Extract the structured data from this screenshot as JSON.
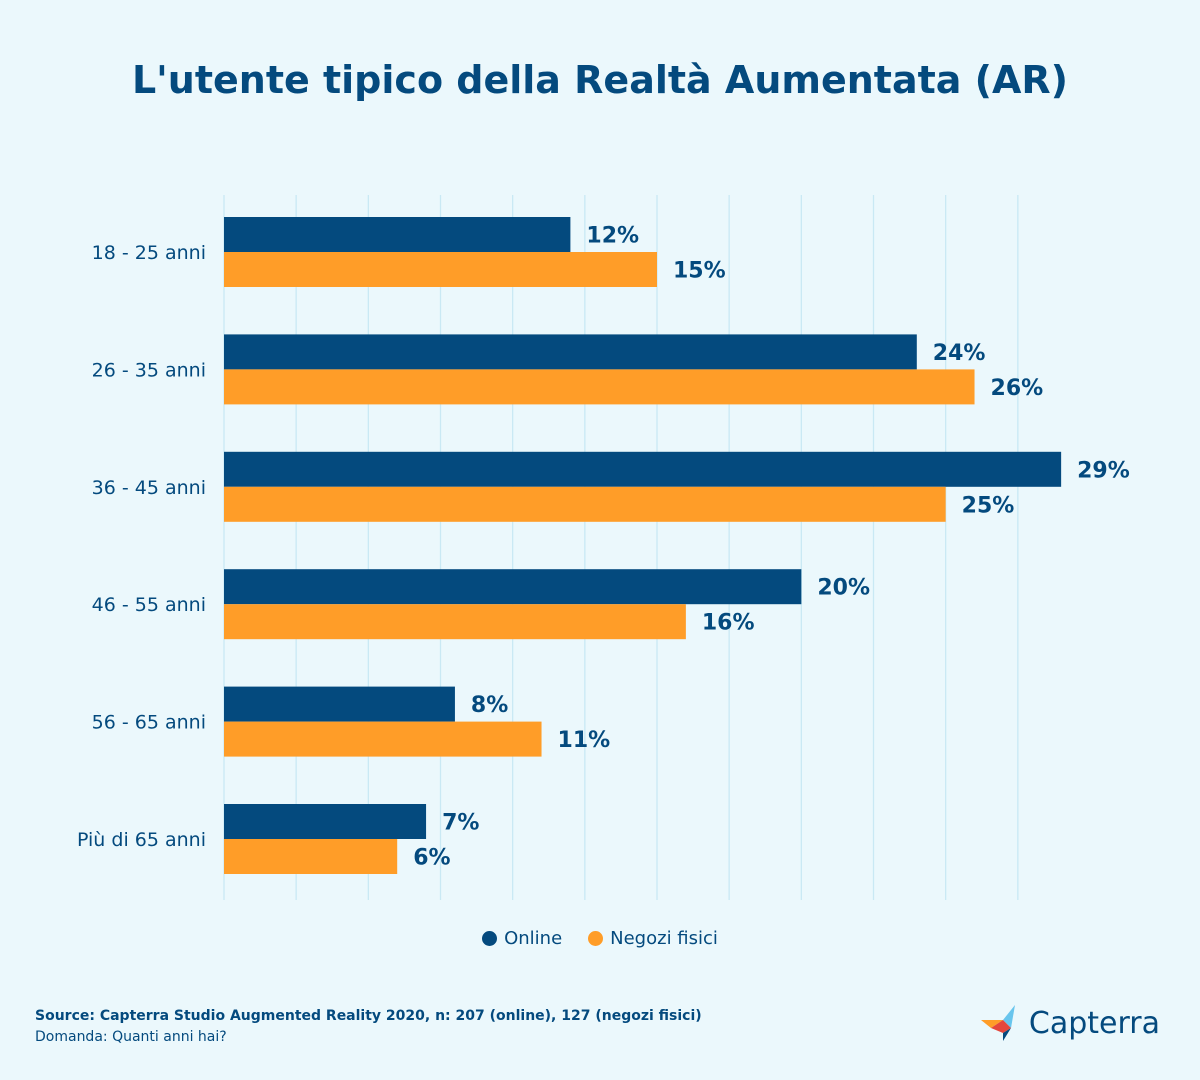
{
  "title": "L'utente tipico della Realtà Aumentata (AR)",
  "colors": {
    "online": "#044A7E",
    "negozi": "#FF9D28",
    "background": "#EBF8FC",
    "grid": "#C9E9F4",
    "text": "#044A7E"
  },
  "chart_data": {
    "type": "bar",
    "orientation": "horizontal",
    "categories": [
      "18 - 25 anni",
      "26 - 35 anni",
      "36 - 45 anni",
      "46 - 55 anni",
      "56 - 65 anni",
      "Più di 65 anni"
    ],
    "series": [
      {
        "name": "Online",
        "values": [
          12,
          24,
          29,
          20,
          8,
          7
        ],
        "labels": [
          "12%",
          "24%",
          "29%",
          "20%",
          "8%",
          "7%"
        ]
      },
      {
        "name": "Negozi fisici",
        "values": [
          15,
          26,
          25,
          16,
          11,
          6
        ],
        "labels": [
          "15%",
          "26%",
          "25%",
          "16%",
          "11%",
          "6%"
        ]
      }
    ],
    "xlim": [
      0,
      30
    ],
    "grid": true,
    "legend_position": "bottom-center"
  },
  "legend": {
    "online": "Online",
    "negozi": "Negozi fisici"
  },
  "footer": {
    "source": "Source: Capterra Studio Augmented Reality 2020, n: 207 (online), 127 (negozi fisici)",
    "question": "Domanda: Quanti anni hai?"
  },
  "logo": {
    "text": "Capterra"
  }
}
